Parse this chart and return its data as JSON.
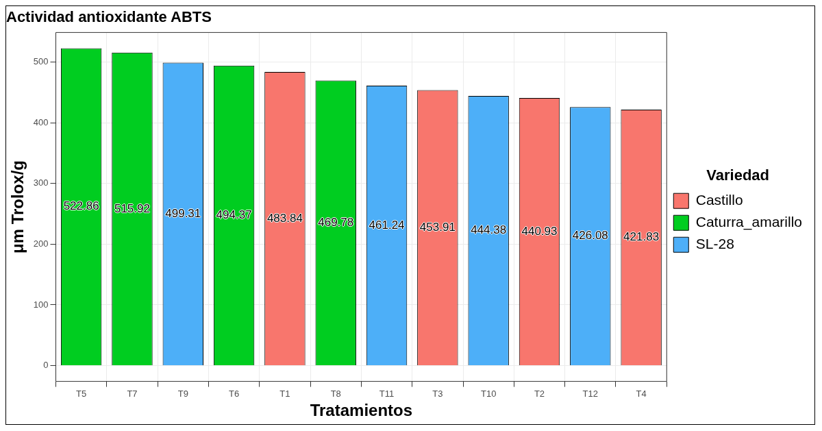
{
  "chart_data": {
    "type": "bar",
    "title": "Actividad antioxidante ABTS",
    "xlabel": "Tratamientos",
    "ylabel": "μm Trolox/g",
    "legend_title": "Variedad",
    "categories": [
      "T5",
      "T7",
      "T9",
      "T6",
      "T1",
      "T8",
      "T11",
      "T3",
      "T10",
      "T2",
      "T12",
      "T4"
    ],
    "series": [
      {
        "name": "Castillo",
        "color": "#f8766d",
        "values": [
          null,
          null,
          null,
          null,
          483.84,
          null,
          null,
          453.91,
          null,
          440.93,
          null,
          421.83
        ]
      },
      {
        "name": "Caturra_amarillo",
        "color": "#00cd20",
        "values": [
          522.86,
          515.92,
          null,
          494.37,
          null,
          469.78,
          null,
          null,
          null,
          null,
          null,
          null
        ]
      },
      {
        "name": "SL-28",
        "color": "#4daff8",
        "values": [
          null,
          null,
          499.31,
          null,
          null,
          null,
          461.24,
          null,
          444.38,
          null,
          426.08,
          null
        ]
      }
    ],
    "ylim": [
      -26.1,
      549
    ],
    "yticks": [
      0,
      100,
      200,
      300,
      400,
      500
    ],
    "grid": true,
    "legend": "right",
    "data_labels": true
  }
}
